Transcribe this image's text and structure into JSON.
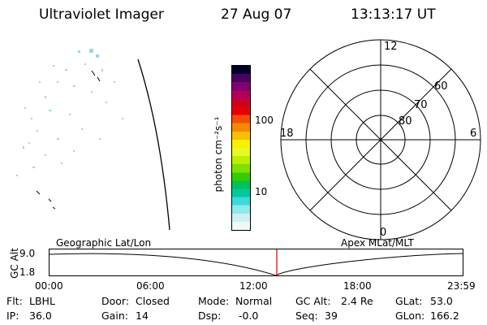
{
  "header": {
    "instrument": "Ultraviolet Imager",
    "date": "27 Aug 07",
    "time": "13:13:17 UT"
  },
  "colorbar": {
    "unit": "photon cm⁻²s⁻¹",
    "ticks": [
      "100",
      "10"
    ],
    "colors": [
      "#000030",
      "#4b0060",
      "#800070",
      "#b0005a",
      "#d00020",
      "#e80000",
      "#f05000",
      "#f88800",
      "#f8c000",
      "#f8f000",
      "#e8f820",
      "#b8f000",
      "#80e000",
      "#30d000",
      "#00c060",
      "#00c8a0",
      "#40d8d8",
      "#90e8e8",
      "#d0f0f0",
      "#f0f8f8"
    ]
  },
  "polar_plot": {
    "mlt_labels": {
      "top": "12",
      "bottom": "0",
      "left": "18",
      "right": "6"
    },
    "lat_labels": [
      "60",
      "70",
      "80"
    ]
  },
  "altitude_plot": {
    "ylabel": "GC Alt",
    "y_ticks": [
      "9.0",
      "1.8"
    ],
    "left_label": "Geographic Lat/Lon",
    "right_label": "Apex MLat/MLT",
    "x_ticks": [
      "00:00",
      "06:00",
      "12:00",
      "18:00",
      "23:59"
    ],
    "marker_color": "#e00000"
  },
  "status": {
    "row1": [
      {
        "label": "Flt:",
        "value": "LBHL"
      },
      {
        "label": "Door:",
        "value": "Closed"
      },
      {
        "label": "Mode:",
        "value": "Normal"
      },
      {
        "label": "GC Alt:",
        "value": "2.4 Re"
      },
      {
        "label": "GLat:",
        "value": "53.0"
      }
    ],
    "row2": [
      {
        "label": "IP:",
        "value": "36.0"
      },
      {
        "label": "Gain:",
        "value": "14"
      },
      {
        "label": "Dsp:",
        "value": "-0.0"
      },
      {
        "label": "Seq:",
        "value": "39"
      },
      {
        "label": "GLon:",
        "value": "166.2"
      }
    ]
  }
}
